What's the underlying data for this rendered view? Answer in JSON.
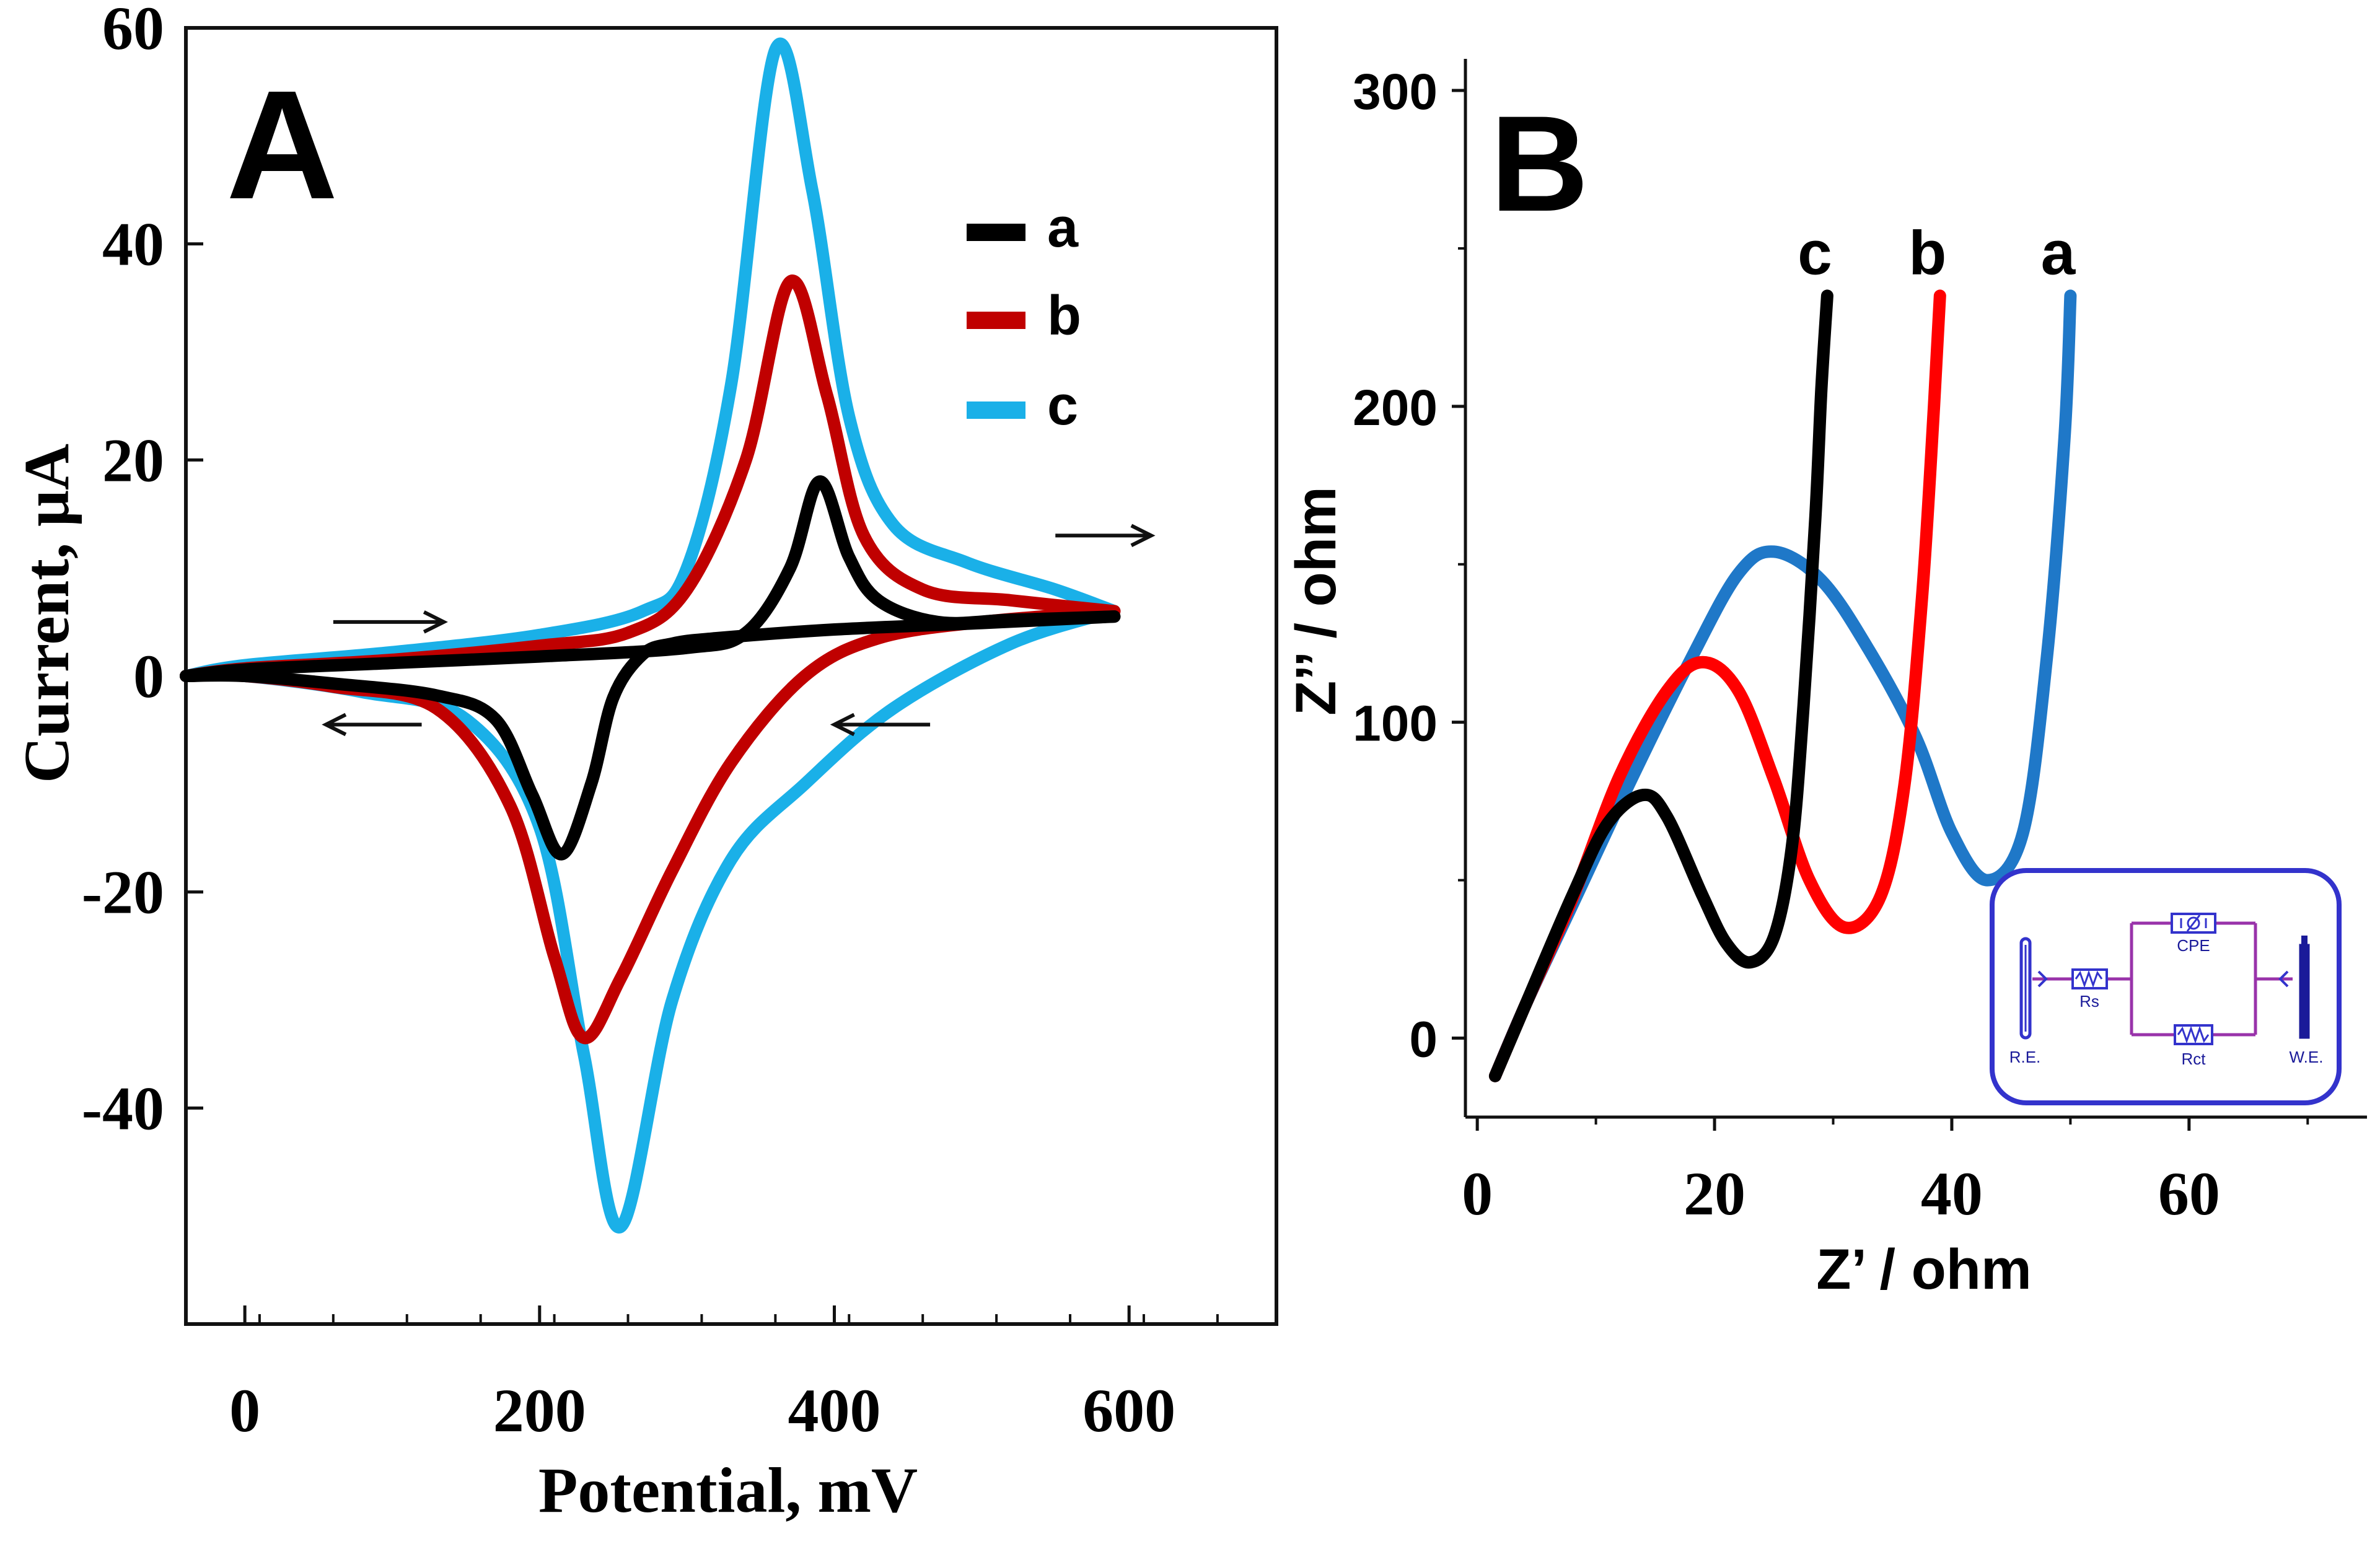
{
  "chart_data": [
    {
      "panel_label": "A",
      "type": "line",
      "xlabel": "Potential, mV",
      "ylabel": "Current, μA",
      "xlim": [
        -40,
        700
      ],
      "ylim": [
        -60,
        60
      ],
      "xticks": [
        0,
        200,
        400,
        600
      ],
      "yticks": [
        -40,
        -20,
        0,
        20,
        40,
        60
      ],
      "xtick_labels": [
        "0",
        "200",
        "400",
        "600"
      ],
      "ytick_labels": [
        "-40",
        "-20",
        "0",
        "20",
        "40",
        "60"
      ],
      "grid": false,
      "legend_position": "top-right",
      "series": [
        {
          "name": "a",
          "color": "#000000",
          "forward": [
            [
              -40,
              0
            ],
            [
              0,
              0.6
            ],
            [
              100,
              1.2
            ],
            [
              200,
              1.8
            ],
            [
              300,
              2.6
            ],
            [
              340,
              4
            ],
            [
              370,
              10
            ],
            [
              390,
              18
            ],
            [
              410,
              11
            ],
            [
              430,
              7
            ],
            [
              470,
              5
            ],
            [
              520,
              5.2
            ],
            [
              590,
              5.5
            ]
          ],
          "reverse": [
            [
              590,
              5.5
            ],
            [
              500,
              4.9
            ],
            [
              400,
              4.3
            ],
            [
              320,
              3.5
            ],
            [
              290,
              3
            ],
            [
              270,
              2
            ],
            [
              250,
              -2
            ],
            [
              235,
              -10
            ],
            [
              215,
              -16.5
            ],
            [
              195,
              -11
            ],
            [
              170,
              -4
            ],
            [
              130,
              -1.8
            ],
            [
              60,
              -0.7
            ],
            [
              0,
              0
            ],
            [
              -40,
              0
            ]
          ]
        },
        {
          "name": "b",
          "color": "#c00000",
          "forward": [
            [
              -40,
              0
            ],
            [
              0,
              0.7
            ],
            [
              100,
              1.5
            ],
            [
              200,
              2.8
            ],
            [
              260,
              4
            ],
            [
              300,
              8
            ],
            [
              340,
              20
            ],
            [
              370,
              36.5
            ],
            [
              395,
              26
            ],
            [
              420,
              13
            ],
            [
              460,
              8
            ],
            [
              520,
              7
            ],
            [
              590,
              6
            ]
          ],
          "reverse": [
            [
              590,
              6
            ],
            [
              500,
              5
            ],
            [
              430,
              3.5
            ],
            [
              380,
              0
            ],
            [
              330,
              -8
            ],
            [
              290,
              -18
            ],
            [
              255,
              -28
            ],
            [
              230,
              -33.5
            ],
            [
              210,
              -26
            ],
            [
              180,
              -12
            ],
            [
              130,
              -3
            ],
            [
              60,
              -1
            ],
            [
              0,
              0
            ],
            [
              -40,
              0
            ]
          ]
        },
        {
          "name": "c",
          "color": "#1ab0e8",
          "forward": [
            [
              -40,
              0
            ],
            [
              0,
              1
            ],
            [
              100,
              2.2
            ],
            [
              200,
              3.8
            ],
            [
              270,
              6
            ],
            [
              300,
              10
            ],
            [
              330,
              27
            ],
            [
              360,
              58
            ],
            [
              385,
              45
            ],
            [
              410,
              24
            ],
            [
              440,
              14
            ],
            [
              490,
              10.5
            ],
            [
              550,
              8
            ],
            [
              590,
              6
            ]
          ],
          "reverse": [
            [
              590,
              6
            ],
            [
              520,
              3
            ],
            [
              440,
              -3
            ],
            [
              380,
              -10
            ],
            [
              330,
              -17
            ],
            [
              290,
              -30
            ],
            [
              255,
              -51
            ],
            [
              230,
              -35
            ],
            [
              200,
              -14
            ],
            [
              150,
              -4
            ],
            [
              80,
              -1.5
            ],
            [
              0,
              0
            ],
            [
              -40,
              0
            ]
          ]
        }
      ],
      "arrows": [
        {
          "x1": 60,
          "x2": 135,
          "y": 5,
          "direction": "right"
        },
        {
          "x1": 550,
          "x2": 615,
          "y": 13,
          "direction": "right"
        },
        {
          "x1": 120,
          "x2": 55,
          "y": -4.5,
          "direction": "left"
        },
        {
          "x1": 465,
          "x2": 400,
          "y": -4.5,
          "direction": "left"
        }
      ]
    },
    {
      "panel_label": "B",
      "type": "line",
      "xlabel": "Z’ / ohm",
      "ylabel": "Z’’ / ohm",
      "xlim": [
        -1,
        75
      ],
      "ylim": [
        -25,
        310
      ],
      "xticks": [
        0,
        20,
        40,
        60
      ],
      "yticks": [
        0,
        100,
        200,
        300
      ],
      "xtick_labels": [
        "0",
        "20",
        "40",
        "60"
      ],
      "ytick_labels": [
        "0",
        "100",
        "200",
        "300"
      ],
      "grid": false,
      "series": [
        {
          "name": "a",
          "color": "#1f78c8",
          "points": [
            [
              1.5,
              -12
            ],
            [
              4,
              10
            ],
            [
              8,
              42
            ],
            [
              13,
              82
            ],
            [
              18,
              120
            ],
            [
              22,
              147
            ],
            [
              25,
              154
            ],
            [
              29,
              145
            ],
            [
              33,
              123
            ],
            [
              37,
              95
            ],
            [
              40,
              65
            ],
            [
              43,
              50
            ],
            [
              46,
              65
            ],
            [
              48,
              120
            ],
            [
              49.5,
              190
            ],
            [
              50,
              235
            ]
          ]
        },
        {
          "name": "b",
          "color": "#ff0000",
          "points": [
            [
              1.5,
              -12
            ],
            [
              4,
              10
            ],
            [
              8,
              44
            ],
            [
              12,
              83
            ],
            [
              16,
              110
            ],
            [
              19,
              119
            ],
            [
              22,
              110
            ],
            [
              25,
              82
            ],
            [
              28,
              50
            ],
            [
              31,
              35
            ],
            [
              34,
              45
            ],
            [
              36,
              80
            ],
            [
              37.5,
              140
            ],
            [
              38.5,
              200
            ],
            [
              39,
              235
            ]
          ]
        },
        {
          "name": "c",
          "color": "#000000",
          "points": [
            [
              1.5,
              -12
            ],
            [
              4,
              10
            ],
            [
              8,
              45
            ],
            [
              11,
              68
            ],
            [
              14,
              77
            ],
            [
              16,
              70
            ],
            [
              19,
              45
            ],
            [
              21,
              30
            ],
            [
              23,
              24
            ],
            [
              25,
              32
            ],
            [
              26.5,
              60
            ],
            [
              27.5,
              105
            ],
            [
              28.5,
              165
            ],
            [
              29,
              205
            ],
            [
              29.5,
              235
            ]
          ]
        }
      ],
      "inset": {
        "labels": [
          "R.E.",
          "Rs",
          "CPE",
          "Rct",
          "W.E."
        ],
        "border_color": "#3333cc",
        "wire_color": "#9933aa"
      }
    }
  ]
}
